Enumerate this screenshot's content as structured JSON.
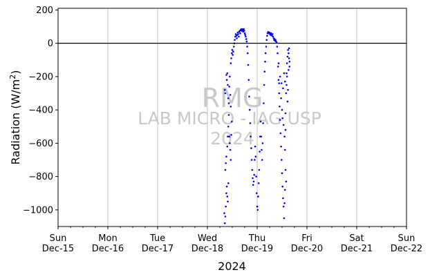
{
  "chart_data": {
    "type": "scatter",
    "title": "",
    "xlabel": "2024",
    "ylabel": "Radiation (W/m²)",
    "ylabel_main": "Radiation (W/m",
    "ylabel_sup": "2",
    "ylabel_close": ")",
    "ylim": [
      -1100,
      210
    ],
    "yticks": [
      200,
      0,
      -200,
      -400,
      -600,
      -800,
      -1000
    ],
    "ytick_labels": [
      "200",
      "0",
      "−200",
      "−400",
      "−600",
      "−800",
      "−1000"
    ],
    "xlim": [
      0,
      7
    ],
    "xticks": [
      {
        "day": "Sun",
        "date": "Dec-15"
      },
      {
        "day": "Mon",
        "date": "Dec-16"
      },
      {
        "day": "Tue",
        "date": "Dec-17"
      },
      {
        "day": "Wed",
        "date": "Dec-18"
      },
      {
        "day": "Thu",
        "date": "Dec-19"
      },
      {
        "day": "Fri",
        "date": "Dec-20"
      },
      {
        "day": "Sat",
        "date": "Dec-21"
      },
      {
        "day": "Sun",
        "date": "Dec-22"
      }
    ],
    "grid": "vertical",
    "reference_line_y": 0,
    "series_color": "#0000ff",
    "watermark": [
      "RMG",
      "LAB MICRO - IAG USP",
      "2024"
    ],
    "series": [
      {
        "x_unit": "days since Dec-15 00:00",
        "points": [
          [
            3.35,
            -1080
          ],
          [
            3.36,
            -1040
          ],
          [
            3.37,
            -980
          ],
          [
            3.38,
            -900
          ],
          [
            3.39,
            -860
          ],
          [
            3.4,
            -920
          ],
          [
            3.41,
            -950
          ],
          [
            3.42,
            -840
          ],
          [
            3.34,
            -1020
          ],
          [
            3.36,
            -760
          ],
          [
            3.37,
            -720
          ],
          [
            3.38,
            -680
          ],
          [
            3.4,
            -620
          ],
          [
            3.41,
            -560
          ],
          [
            3.42,
            -500
          ],
          [
            3.43,
            -430
          ],
          [
            3.35,
            -280
          ],
          [
            3.36,
            -300
          ],
          [
            3.38,
            -190
          ],
          [
            3.39,
            -220
          ],
          [
            3.4,
            -180
          ],
          [
            3.41,
            -250
          ],
          [
            3.42,
            -330
          ],
          [
            3.43,
            -360
          ],
          [
            3.44,
            -260
          ],
          [
            3.45,
            -200
          ],
          [
            3.46,
            -310
          ],
          [
            3.47,
            -380
          ],
          [
            3.44,
            -560
          ],
          [
            3.45,
            -600
          ],
          [
            3.46,
            -640
          ],
          [
            3.47,
            -700
          ],
          [
            3.48,
            -550
          ],
          [
            3.49,
            -470
          ],
          [
            3.47,
            -120
          ],
          [
            3.48,
            -90
          ],
          [
            3.49,
            -60
          ],
          [
            3.5,
            -40
          ],
          [
            3.51,
            -70
          ],
          [
            3.52,
            -50
          ],
          [
            3.53,
            -20
          ],
          [
            3.54,
            0
          ],
          [
            3.55,
            20
          ],
          [
            3.56,
            40
          ],
          [
            3.57,
            55
          ],
          [
            3.58,
            45
          ],
          [
            3.59,
            30
          ],
          [
            3.6,
            50
          ],
          [
            3.61,
            65
          ],
          [
            3.62,
            55
          ],
          [
            3.63,
            40
          ],
          [
            3.64,
            70
          ],
          [
            3.65,
            75
          ],
          [
            3.66,
            60
          ],
          [
            3.67,
            80
          ],
          [
            3.68,
            85
          ],
          [
            3.69,
            75
          ],
          [
            3.7,
            85
          ],
          [
            3.71,
            80
          ],
          [
            3.72,
            70
          ],
          [
            3.73,
            85
          ],
          [
            3.74,
            75
          ],
          [
            3.75,
            60
          ],
          [
            3.76,
            50
          ],
          [
            3.77,
            40
          ],
          [
            3.78,
            25
          ],
          [
            3.79,
            10
          ],
          [
            3.8,
            -20
          ],
          [
            3.81,
            -60
          ],
          [
            3.82,
            -130
          ],
          [
            3.83,
            -220
          ],
          [
            3.84,
            -320
          ],
          [
            3.85,
            -400
          ],
          [
            3.86,
            -480
          ],
          [
            3.87,
            -560
          ],
          [
            3.88,
            -630
          ],
          [
            3.89,
            -700
          ],
          [
            3.9,
            -760
          ],
          [
            3.91,
            -810
          ],
          [
            3.92,
            -850
          ],
          [
            3.93,
            -830
          ],
          [
            3.94,
            -790
          ],
          [
            3.95,
            -700
          ],
          [
            3.96,
            -620
          ],
          [
            3.97,
            -680
          ],
          [
            3.98,
            -800
          ],
          [
            3.99,
            -900
          ],
          [
            4.0,
            -980
          ],
          [
            4.01,
            -1000
          ],
          [
            4.02,
            -920
          ],
          [
            4.03,
            -840
          ],
          [
            4.04,
            -760
          ],
          [
            4.05,
            -650
          ],
          [
            4.06,
            -560
          ],
          [
            4.07,
            -470
          ],
          [
            4.08,
            -560
          ],
          [
            4.09,
            -640
          ],
          [
            4.1,
            -700
          ],
          [
            4.11,
            -600
          ],
          [
            4.12,
            -480
          ],
          [
            4.13,
            -360
          ],
          [
            4.14,
            -250
          ],
          [
            4.15,
            -170
          ],
          [
            4.16,
            -110
          ],
          [
            4.17,
            -60
          ],
          [
            4.18,
            -20
          ],
          [
            4.19,
            20
          ],
          [
            4.2,
            45
          ],
          [
            4.21,
            60
          ],
          [
            4.22,
            68
          ],
          [
            4.23,
            65
          ],
          [
            4.24,
            60
          ],
          [
            4.25,
            64
          ],
          [
            4.26,
            55
          ],
          [
            4.27,
            50
          ],
          [
            4.28,
            60
          ],
          [
            4.29,
            52
          ],
          [
            4.3,
            45
          ],
          [
            4.31,
            55
          ],
          [
            4.32,
            40
          ],
          [
            4.33,
            30
          ],
          [
            4.34,
            20
          ],
          [
            4.35,
            25
          ],
          [
            4.36,
            15
          ],
          [
            4.37,
            20
          ],
          [
            4.38,
            10
          ],
          [
            4.39,
            5
          ],
          [
            4.4,
            -20
          ],
          [
            4.41,
            -60
          ],
          [
            4.42,
            -140
          ],
          [
            4.43,
            -220
          ],
          [
            4.44,
            -300
          ],
          [
            4.45,
            -380
          ],
          [
            4.46,
            -460
          ],
          [
            4.47,
            -540
          ],
          [
            4.48,
            -620
          ],
          [
            4.49,
            -700
          ],
          [
            4.5,
            -780
          ],
          [
            4.51,
            -860
          ],
          [
            4.52,
            -930
          ],
          [
            4.53,
            -980
          ],
          [
            4.54,
            -1050
          ],
          [
            4.55,
            -960
          ],
          [
            4.56,
            -880
          ],
          [
            4.43,
            -120
          ],
          [
            4.44,
            -240
          ],
          [
            4.46,
            -200
          ],
          [
            4.48,
            -330
          ],
          [
            4.5,
            -400
          ],
          [
            4.52,
            -270
          ],
          [
            4.54,
            -180
          ],
          [
            4.56,
            -230
          ],
          [
            4.57,
            -420
          ],
          [
            4.58,
            -300
          ],
          [
            4.59,
            -250
          ],
          [
            4.6,
            -120
          ],
          [
            4.61,
            -80
          ],
          [
            4.62,
            -40
          ],
          [
            4.63,
            -60
          ],
          [
            4.64,
            -90
          ],
          [
            4.65,
            -140
          ],
          [
            4.6,
            -200
          ],
          [
            4.62,
            -280
          ],
          [
            4.55,
            -560
          ],
          [
            4.56,
            -640
          ],
          [
            4.57,
            -760
          ],
          [
            4.58,
            -830
          ],
          [
            4.53,
            -490
          ],
          [
            4.51,
            -450
          ],
          [
            4.49,
            -240
          ],
          [
            4.64,
            -30
          ],
          [
            4.65,
            -110
          ],
          [
            4.63,
            -160
          ],
          [
            4.59,
            -180
          ],
          [
            4.61,
            -350
          ],
          [
            4.57,
            -520
          ]
        ]
      }
    ]
  }
}
